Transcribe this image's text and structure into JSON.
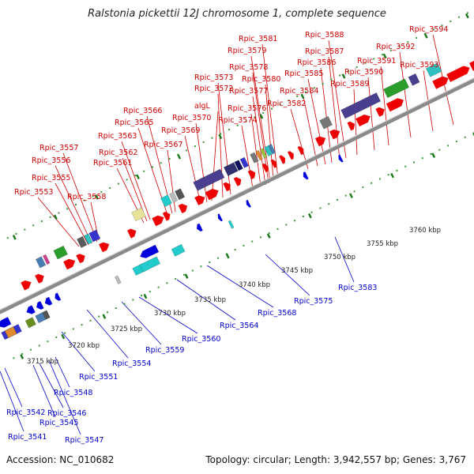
{
  "title": "Ralstonia pickettii 12J chromosome 1, complete sequence",
  "accession": "Accession: NC_010682",
  "topology": "Topology: circular; Length: 3,942,557 bp; Genes: 3,767",
  "kbp_labels": [
    "3715 kbp",
    "3720 kbp",
    "3725 kbp",
    "3730 kbp",
    "3735 kbp",
    "3740 kbp",
    "3745 kbp",
    "3750 kbp",
    "3755 kbp",
    "3760 kbp"
  ],
  "colors": {
    "forward_label": "#cc0000",
    "reverse_label": "#0000cc",
    "forward_cds": "#ee0000",
    "reverse_cds": "#0000dd"
  },
  "forward_genes": [
    "Rpic_3553",
    "Rpic_3555",
    "Rpic_3556",
    "Rpic_3557",
    "Rpic_3558",
    "Rpic_3561",
    "Rpic_3562",
    "Rpic_3563",
    "Rpic_3565",
    "Rpic_3566",
    "Rpic_3567",
    "Rpic_3569",
    "Rpic_3570",
    "algL",
    "Rpic_3572",
    "Rpic_3573",
    "Rpic_3574",
    "Rpic_3576",
    "Rpic_3577",
    "Rpic_3578",
    "Rpic_3579",
    "Rpic_3580",
    "Rpic_3581",
    "Rpic_3582",
    "Rpic_3584",
    "Rpic_3585",
    "Rpic_3586",
    "Rpic_3587",
    "Rpic_3588",
    "Rpic_3589",
    "Rpic_3590",
    "Rpic_3591",
    "Rpic_3592",
    "Rpic_3593",
    "Rpic_3594"
  ],
  "reverse_genes": [
    "Rpic_3541",
    "Rpic_3542",
    "Rpic_3545",
    "Rpic_3546",
    "Rpic_3547",
    "Rpic_3548",
    "Rpic_3551",
    "Rpic_3554",
    "Rpic_3559",
    "Rpic_3560",
    "Rpic_3564",
    "Rpic_3568",
    "Rpic_3575",
    "Rpic_3583"
  ]
}
